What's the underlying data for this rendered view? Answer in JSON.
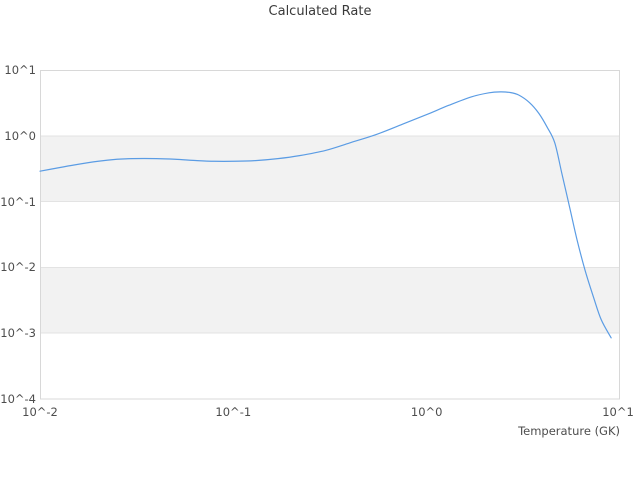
{
  "title": "Calculated Rate",
  "x_axis": {
    "label": "Temperature (GK)",
    "ticks": [
      "10^-2",
      "10^-1",
      "10^0",
      "10^1"
    ]
  },
  "y_axis": {
    "ticks": [
      "10^1",
      "10^0",
      "10^-1",
      "10^-2",
      "10^-3",
      "10^-4"
    ]
  },
  "colors": {
    "line": "#5b9ce4",
    "band": "#f2f2f2",
    "grid": "#e3e3e3",
    "border": "#d8d8d8",
    "tick_text": "#4d4d4d",
    "title_text": "#3a3a3a"
  },
  "chart_data": {
    "type": "line",
    "title": "Calculated Rate",
    "xlabel": "Temperature (GK)",
    "ylabel": "",
    "x_scale": "log",
    "y_scale": "log",
    "xlim": [
      0.01,
      10
    ],
    "ylim": [
      0.0001,
      10
    ],
    "grid": "horizontal-decade-lines-with-alternating-bands",
    "legend": "none",
    "series": [
      {
        "name": "Calculated Rate",
        "x": [
          0.01,
          0.012,
          0.015,
          0.02,
          0.025,
          0.03,
          0.04,
          0.05,
          0.065,
          0.08,
          0.1,
          0.13,
          0.17,
          0.22,
          0.3,
          0.4,
          0.55,
          0.75,
          1.0,
          1.3,
          1.7,
          2.1,
          2.4,
          2.7,
          3.0,
          3.4,
          3.8,
          4.2,
          4.6,
          5.0,
          5.5,
          6.0,
          6.6,
          7.3,
          8.0,
          9.0
        ],
        "y": [
          0.29,
          0.32,
          0.36,
          0.41,
          0.44,
          0.45,
          0.45,
          0.44,
          0.42,
          0.41,
          0.41,
          0.42,
          0.45,
          0.5,
          0.6,
          0.78,
          1.05,
          1.5,
          2.1,
          2.9,
          3.9,
          4.5,
          4.65,
          4.55,
          4.15,
          3.2,
          2.2,
          1.35,
          0.78,
          0.27,
          0.08,
          0.026,
          0.009,
          0.0035,
          0.0016,
          0.00085
        ]
      }
    ]
  }
}
